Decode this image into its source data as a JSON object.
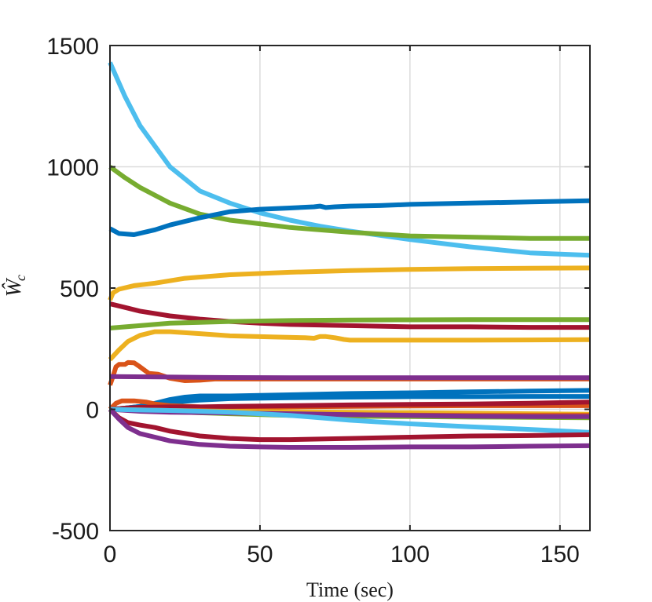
{
  "chart_data": {
    "type": "line",
    "title": "",
    "xlabel": "Time (sec)",
    "ylabel": "Ŵ",
    "ylabel_subscript": "c",
    "xlim": [
      0,
      160
    ],
    "ylim": [
      -500,
      1500
    ],
    "xticks": [
      0,
      50,
      100,
      150
    ],
    "yticks": [
      -500,
      0,
      500,
      1000,
      1500
    ],
    "xtick_labels": [
      "0",
      "50",
      "100",
      "150"
    ],
    "ytick_labels": [
      "-500",
      "0",
      "500",
      "1000",
      "1500"
    ],
    "grid": true,
    "box": true,
    "series": [
      {
        "color": "#4DBEEE",
        "x": [
          0,
          5,
          10,
          20,
          30,
          40,
          50,
          60,
          70,
          80,
          100,
          120,
          140,
          160
        ],
        "y": [
          1430,
          1290,
          1170,
          1000,
          900,
          850,
          810,
          780,
          755,
          735,
          700,
          670,
          645,
          635
        ]
      },
      {
        "color": "#77AC30",
        "x": [
          0,
          5,
          10,
          20,
          30,
          40,
          50,
          60,
          80,
          100,
          120,
          140,
          160
        ],
        "y": [
          1000,
          955,
          915,
          850,
          805,
          780,
          765,
          750,
          730,
          715,
          710,
          705,
          705
        ]
      },
      {
        "color": "#0072BD",
        "x": [
          0,
          3,
          8,
          15,
          20,
          30,
          40,
          50,
          60,
          68,
          70,
          72,
          75,
          80,
          90,
          100,
          120,
          140,
          160
        ],
        "y": [
          745,
          725,
          720,
          740,
          760,
          790,
          815,
          825,
          830,
          835,
          838,
          832,
          835,
          838,
          840,
          845,
          850,
          855,
          860
        ]
      },
      {
        "color": "#EDB120",
        "x": [
          0,
          1,
          3,
          8,
          15,
          20,
          25,
          40,
          60,
          80,
          100,
          120,
          140,
          160
        ],
        "y": [
          450,
          480,
          495,
          510,
          520,
          530,
          540,
          555,
          565,
          572,
          577,
          580,
          582,
          583
        ]
      },
      {
        "color": "#A2142F",
        "x": [
          0,
          5,
          10,
          20,
          30,
          40,
          50,
          60,
          80,
          100,
          120,
          140,
          160
        ],
        "y": [
          435,
          420,
          405,
          385,
          372,
          362,
          355,
          350,
          345,
          340,
          340,
          338,
          338
        ]
      },
      {
        "color": "#77AC30",
        "x": [
          0,
          10,
          20,
          40,
          60,
          80,
          100,
          120,
          140,
          160
        ],
        "y": [
          335,
          345,
          355,
          362,
          366,
          368,
          369,
          370,
          370,
          370
        ]
      },
      {
        "color": "#EDB120",
        "x": [
          0,
          3,
          6,
          10,
          15,
          20,
          30,
          40,
          55,
          65,
          68,
          70,
          72,
          75,
          78,
          80,
          100,
          120,
          140,
          160
        ],
        "y": [
          205,
          245,
          280,
          305,
          320,
          320,
          312,
          303,
          298,
          295,
          293,
          300,
          300,
          295,
          288,
          285,
          285,
          285,
          286,
          287
        ]
      },
      {
        "color": "#D95319",
        "x": [
          0,
          1,
          2,
          3,
          5,
          6,
          8,
          10,
          13,
          16,
          20,
          25,
          30,
          35,
          40,
          60,
          80,
          100,
          120,
          140,
          160
        ],
        "y": [
          100,
          135,
          175,
          185,
          185,
          193,
          192,
          175,
          148,
          145,
          128,
          118,
          120,
          125,
          125,
          125,
          125,
          125,
          125,
          125,
          125
        ]
      },
      {
        "color": "#7E2F8E",
        "x": [
          0,
          20,
          40,
          60,
          80,
          100,
          120,
          140,
          160
        ],
        "y": [
          135,
          133,
          131,
          130,
          130,
          130,
          130,
          130,
          130
        ]
      },
      {
        "color": "#0072BD",
        "x": [
          0,
          5,
          10,
          15,
          20,
          25,
          30,
          40,
          60,
          80,
          100,
          120,
          140,
          160
        ],
        "y": [
          0,
          5,
          12,
          25,
          40,
          50,
          55,
          55,
          60,
          65,
          68,
          72,
          75,
          78
        ]
      },
      {
        "color": "#0072BD",
        "x": [
          0,
          5,
          10,
          15,
          20,
          30,
          40,
          60,
          80,
          100,
          120,
          140,
          160
        ],
        "y": [
          0,
          5,
          12,
          20,
          28,
          38,
          44,
          48,
          50,
          52,
          52,
          53,
          53
        ]
      },
      {
        "color": "#D95319",
        "x": [
          0,
          2,
          4,
          8,
          12,
          15,
          20,
          30,
          40,
          60,
          80,
          100,
          120,
          140,
          160
        ],
        "y": [
          0,
          25,
          35,
          35,
          30,
          22,
          15,
          10,
          8,
          10,
          12,
          14,
          15,
          15,
          15
        ]
      },
      {
        "color": "#A2142F",
        "x": [
          0,
          5,
          10,
          20,
          30,
          40,
          60,
          80,
          100,
          120,
          140,
          160
        ],
        "y": [
          0,
          5,
          8,
          10,
          10,
          12,
          15,
          18,
          20,
          22,
          25,
          30
        ]
      },
      {
        "color": "#EDB120",
        "x": [
          0,
          20,
          40,
          60,
          80,
          100,
          120,
          140,
          160
        ],
        "y": [
          0,
          -5,
          -8,
          -10,
          -12,
          -14,
          -16,
          -18,
          -20
        ]
      },
      {
        "color": "#77AC30",
        "x": [
          0,
          20,
          40,
          60,
          80,
          100,
          120,
          140,
          160
        ],
        "y": [
          0,
          -10,
          -18,
          -25,
          -28,
          -30,
          -32,
          -33,
          -35
        ]
      },
      {
        "color": "#D95319",
        "x": [
          0,
          10,
          20,
          40,
          60,
          80,
          100,
          120,
          140,
          160
        ],
        "y": [
          0,
          -5,
          -10,
          -15,
          -20,
          -22,
          -24,
          -25,
          -25,
          -25
        ]
      },
      {
        "color": "#7E2F8E",
        "x": [
          0,
          10,
          20,
          40,
          60,
          80,
          100,
          120,
          140,
          160
        ],
        "y": [
          0,
          -8,
          -12,
          -15,
          -18,
          -22,
          -25,
          -28,
          -30,
          -30
        ]
      },
      {
        "color": "#4DBEEE",
        "x": [
          0,
          10,
          20,
          30,
          40,
          50,
          60,
          70,
          80,
          100,
          120,
          140,
          160
        ],
        "y": [
          0,
          -3,
          -5,
          -8,
          -12,
          -18,
          -25,
          -35,
          -45,
          -60,
          -72,
          -83,
          -95
        ]
      },
      {
        "color": "#A2142F",
        "x": [
          0,
          3,
          6,
          10,
          15,
          20,
          30,
          40,
          50,
          60,
          80,
          100,
          120,
          140,
          160
        ],
        "y": [
          0,
          -35,
          -55,
          -65,
          -75,
          -90,
          -110,
          -120,
          -125,
          -125,
          -120,
          -115,
          -110,
          -108,
          -105
        ]
      },
      {
        "color": "#7E2F8E",
        "x": [
          0,
          3,
          6,
          10,
          15,
          20,
          30,
          40,
          50,
          60,
          70,
          80,
          100,
          120,
          140,
          160
        ],
        "y": [
          0,
          -40,
          -75,
          -100,
          -115,
          -130,
          -145,
          -152,
          -155,
          -157,
          -157,
          -157,
          -155,
          -155,
          -152,
          -150
        ]
      }
    ]
  }
}
